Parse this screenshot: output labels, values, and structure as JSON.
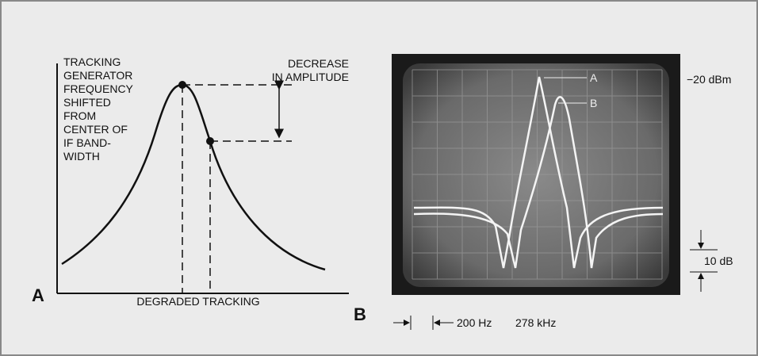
{
  "panel_a": {
    "label": "A",
    "note_lines": [
      "TRACKING",
      "GENERATOR",
      "FREQUENCY",
      "SHIFTED",
      "FROM",
      "CENTER OF",
      "IF BAND-",
      "WIDTH"
    ],
    "decrease_lines": [
      "DECREASE",
      "IN AMPLITUDE"
    ],
    "caption": "DEGRADED TRACKING"
  },
  "panel_b": {
    "label": "B",
    "trace_labels": [
      "A",
      "B"
    ],
    "reference_level": "−20 dBm",
    "scale": "10 dB",
    "span": "200 Hz",
    "center": "278 kHz"
  }
}
